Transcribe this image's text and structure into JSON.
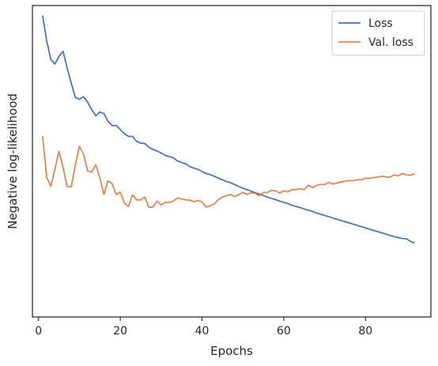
{
  "chart_data": {
    "type": "line",
    "title": "",
    "xlabel": "Epochs",
    "ylabel": "Negative log-likelihood",
    "xlim": [
      -1.5,
      96.0
    ],
    "ylim": [
      0.0,
      1.0
    ],
    "xticks": [
      0,
      20,
      40,
      60,
      80
    ],
    "xtick_labels": [
      "0",
      "20",
      "40",
      "60",
      "80"
    ],
    "ytick_labels_visible": false,
    "grid": false,
    "legend_position": "top-right",
    "series": [
      {
        "name": "Loss",
        "color": "#4C72B0",
        "x": [
          1,
          2,
          3,
          4,
          5,
          6,
          7,
          8,
          9,
          10,
          11,
          12,
          13,
          14,
          15,
          16,
          17,
          18,
          19,
          20,
          21,
          22,
          23,
          24,
          25,
          26,
          27,
          28,
          29,
          30,
          31,
          32,
          33,
          34,
          35,
          36,
          37,
          38,
          39,
          40,
          41,
          42,
          43,
          44,
          45,
          46,
          47,
          48,
          49,
          50,
          51,
          52,
          53,
          54,
          55,
          56,
          57,
          58,
          59,
          60,
          61,
          62,
          63,
          64,
          65,
          66,
          67,
          68,
          69,
          70,
          71,
          72,
          73,
          74,
          75,
          76,
          77,
          78,
          79,
          80,
          81,
          82,
          83,
          84,
          85,
          86,
          87,
          88,
          89,
          90,
          91,
          92
        ],
        "values": [
          0.968,
          0.886,
          0.827,
          0.812,
          0.837,
          0.853,
          0.8,
          0.751,
          0.705,
          0.699,
          0.707,
          0.69,
          0.666,
          0.646,
          0.658,
          0.653,
          0.628,
          0.615,
          0.615,
          0.602,
          0.588,
          0.58,
          0.58,
          0.564,
          0.558,
          0.557,
          0.545,
          0.538,
          0.533,
          0.527,
          0.519,
          0.515,
          0.511,
          0.501,
          0.496,
          0.492,
          0.483,
          0.478,
          0.474,
          0.467,
          0.461,
          0.457,
          0.452,
          0.446,
          0.44,
          0.435,
          0.431,
          0.425,
          0.419,
          0.414,
          0.409,
          0.404,
          0.399,
          0.395,
          0.39,
          0.385,
          0.381,
          0.377,
          0.372,
          0.368,
          0.364,
          0.359,
          0.355,
          0.351,
          0.347,
          0.343,
          0.339,
          0.334,
          0.33,
          0.326,
          0.322,
          0.318,
          0.314,
          0.31,
          0.306,
          0.302,
          0.298,
          0.294,
          0.29,
          0.286,
          0.282,
          0.278,
          0.274,
          0.27,
          0.266,
          0.262,
          0.258,
          0.255,
          0.252,
          0.251,
          0.243,
          0.238
        ]
      },
      {
        "name": "Val. loss",
        "color": "#DD8452",
        "x": [
          1,
          2,
          3,
          4,
          5,
          6,
          7,
          8,
          9,
          10,
          11,
          12,
          13,
          14,
          15,
          16,
          17,
          18,
          19,
          20,
          21,
          22,
          23,
          24,
          25,
          26,
          27,
          28,
          29,
          30,
          31,
          32,
          33,
          34,
          35,
          36,
          37,
          38,
          39,
          40,
          41,
          42,
          43,
          44,
          45,
          46,
          47,
          48,
          49,
          50,
          51,
          52,
          53,
          54,
          55,
          56,
          57,
          58,
          59,
          60,
          61,
          62,
          63,
          64,
          65,
          66,
          67,
          68,
          69,
          70,
          71,
          72,
          73,
          74,
          75,
          76,
          77,
          78,
          79,
          80,
          81,
          82,
          83,
          84,
          85,
          86,
          87,
          88,
          89,
          90,
          91,
          92
        ],
        "values": [
          0.58,
          0.448,
          0.42,
          0.474,
          0.532,
          0.48,
          0.418,
          0.418,
          0.488,
          0.548,
          0.523,
          0.469,
          0.465,
          0.489,
          0.447,
          0.394,
          0.437,
          0.428,
          0.393,
          0.401,
          0.365,
          0.355,
          0.392,
          0.376,
          0.376,
          0.385,
          0.352,
          0.353,
          0.372,
          0.36,
          0.368,
          0.368,
          0.372,
          0.382,
          0.379,
          0.376,
          0.375,
          0.37,
          0.374,
          0.369,
          0.353,
          0.357,
          0.363,
          0.377,
          0.385,
          0.389,
          0.394,
          0.386,
          0.393,
          0.4,
          0.394,
          0.399,
          0.397,
          0.389,
          0.4,
          0.399,
          0.407,
          0.405,
          0.398,
          0.405,
          0.402,
          0.409,
          0.409,
          0.412,
          0.409,
          0.423,
          0.415,
          0.422,
          0.426,
          0.425,
          0.433,
          0.427,
          0.43,
          0.433,
          0.436,
          0.438,
          0.437,
          0.441,
          0.44,
          0.446,
          0.445,
          0.448,
          0.449,
          0.452,
          0.45,
          0.449,
          0.456,
          0.453,
          0.461,
          0.456,
          0.455,
          0.46
        ]
      }
    ]
  }
}
